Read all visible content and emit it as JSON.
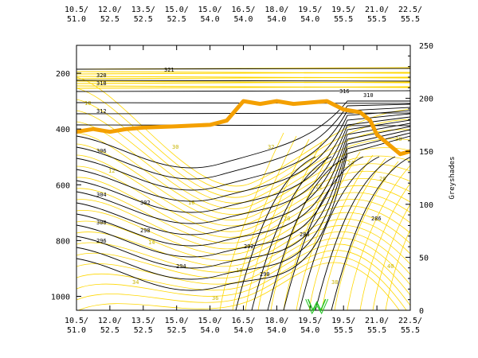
{
  "chart_data": {
    "type": "contour",
    "x_top_ticks": [
      {
        "lon": "10.5/",
        "lat": "51.0"
      },
      {
        "lon": "12.0/",
        "lat": "52.5"
      },
      {
        "lon": "13.5/",
        "lat": "52.5"
      },
      {
        "lon": "15.0/",
        "lat": "52.5"
      },
      {
        "lon": "15.0/",
        "lat": "54.0"
      },
      {
        "lon": "16.5/",
        "lat": "54.0"
      },
      {
        "lon": "18.0/",
        "lat": "54.0"
      },
      {
        "lon": "19.5/",
        "lat": "54.0"
      },
      {
        "lon": "19.5/",
        "lat": "55.5"
      },
      {
        "lon": "21.0/",
        "lat": "55.5"
      },
      {
        "lon": "22.5/",
        "lat": "55.5"
      }
    ],
    "x_bottom_ticks": [
      {
        "lon": "10.5/",
        "lat": "51.0"
      },
      {
        "lon": "12.0/",
        "lat": "52.5"
      },
      {
        "lon": "13.5/",
        "lat": "52.5"
      },
      {
        "lon": "15.0/",
        "lat": "52.5"
      },
      {
        "lon": "15.0/",
        "lat": "54.0"
      },
      {
        "lon": "16.5/",
        "lat": "54.0"
      },
      {
        "lon": "18.0/",
        "lat": "54.0"
      },
      {
        "lon": "19.5/",
        "lat": "54.0"
      },
      {
        "lon": "19.5/",
        "lat": "55.5"
      },
      {
        "lon": "21.0/",
        "lat": "55.5"
      },
      {
        "lon": "22.5/",
        "lat": "55.5"
      }
    ],
    "y_left_ticks": [
      "200",
      "400",
      "600",
      "800",
      "1000"
    ],
    "y_left_values": [
      200,
      400,
      600,
      800,
      1000
    ],
    "y_left_range": [
      100,
      1050
    ],
    "y_right_label": "Greyshades",
    "y_right_ticks": [
      "0",
      "50",
      "100",
      "150",
      "200",
      "250"
    ],
    "y_right_range": [
      0,
      250
    ],
    "theta_label_series": {
      "name": "theta",
      "color": "#000000",
      "labels": [
        "321",
        "320",
        "318",
        "316",
        "312",
        "310",
        "306",
        "304",
        "302",
        "300",
        "298",
        "296",
        "294",
        "292",
        "290",
        "288",
        "286"
      ]
    },
    "yellow_label_series": {
      "name": "wind",
      "color": "#ffd700",
      "labels": [
        "10",
        "12",
        "14",
        "16",
        "18",
        "20",
        "22",
        "24",
        "26",
        "28",
        "30",
        "32",
        "34",
        "36",
        "38",
        "40"
      ]
    },
    "tropopause_line": {
      "color": "#f4a000",
      "x_index": [
        0,
        0.05,
        0.1,
        0.15,
        0.2,
        0.3,
        0.4,
        0.45,
        0.5,
        0.55,
        0.6,
        0.65,
        0.7,
        0.75,
        0.8,
        0.85,
        0.88,
        0.9,
        0.92,
        0.95,
        0.97,
        1.0
      ],
      "pressure": [
        410,
        400,
        410,
        400,
        395,
        390,
        385,
        370,
        300,
        310,
        300,
        310,
        305,
        300,
        330,
        340,
        370,
        420,
        440,
        470,
        490,
        480
      ]
    },
    "marker_label": "W"
  }
}
